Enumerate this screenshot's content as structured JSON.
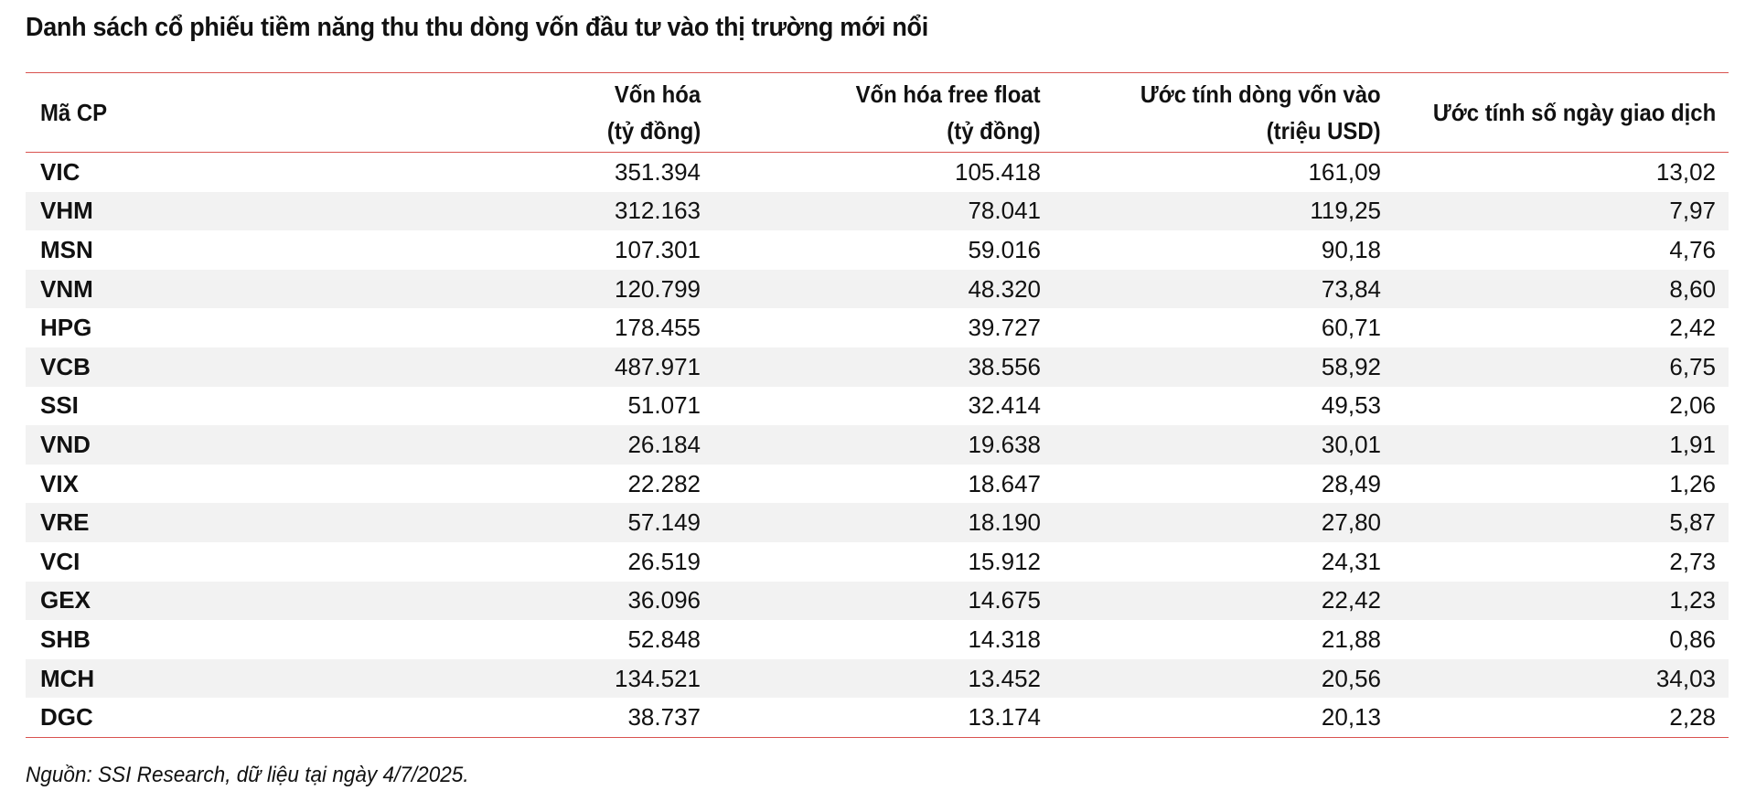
{
  "title": "Danh sách cổ phiếu tiềm năng thu thu dòng vốn đầu tư vào thị trường mới nổi",
  "table": {
    "headers": [
      {
        "line1": "Mã CP",
        "line2": ""
      },
      {
        "line1": "Vốn hóa",
        "line2": "(tỷ đồng)"
      },
      {
        "line1": "Vốn hóa free float",
        "line2": "(tỷ đồng)"
      },
      {
        "line1": "Ước tính dòng vốn vào",
        "line2": "(triệu USD)"
      },
      {
        "line1": "Ước tính số ngày giao dịch",
        "line2": ""
      }
    ],
    "rows": [
      [
        "VIC",
        "351.394",
        "105.418",
        "161,09",
        "13,02"
      ],
      [
        "VHM",
        "312.163",
        "78.041",
        "119,25",
        "7,97"
      ],
      [
        "MSN",
        "107.301",
        "59.016",
        "90,18",
        "4,76"
      ],
      [
        "VNM",
        "120.799",
        "48.320",
        "73,84",
        "8,60"
      ],
      [
        "HPG",
        "178.455",
        "39.727",
        "60,71",
        "2,42"
      ],
      [
        "VCB",
        "487.971",
        "38.556",
        "58,92",
        "6,75"
      ],
      [
        "SSI",
        "51.071",
        "32.414",
        "49,53",
        "2,06"
      ],
      [
        "VND",
        "26.184",
        "19.638",
        "30,01",
        "1,91"
      ],
      [
        "VIX",
        "22.282",
        "18.647",
        "28,49",
        "1,26"
      ],
      [
        "VRE",
        "57.149",
        "18.190",
        "27,80",
        "5,87"
      ],
      [
        "VCI",
        "26.519",
        "15.912",
        "24,31",
        "2,73"
      ],
      [
        "GEX",
        "36.096",
        "14.675",
        "22,42",
        "1,23"
      ],
      [
        "SHB",
        "52.848",
        "14.318",
        "21,88",
        "0,86"
      ],
      [
        "MCH",
        "134.521",
        "13.452",
        "20,56",
        "34,03"
      ],
      [
        "DGC",
        "38.737",
        "13.174",
        "20,13",
        "2,28"
      ]
    ]
  },
  "source_note": "Nguồn: SSI Research, dữ liệu tại ngày 4/7/2025.",
  "colors": {
    "rule": "#d9534f",
    "stripe": "#f2f2f2"
  }
}
